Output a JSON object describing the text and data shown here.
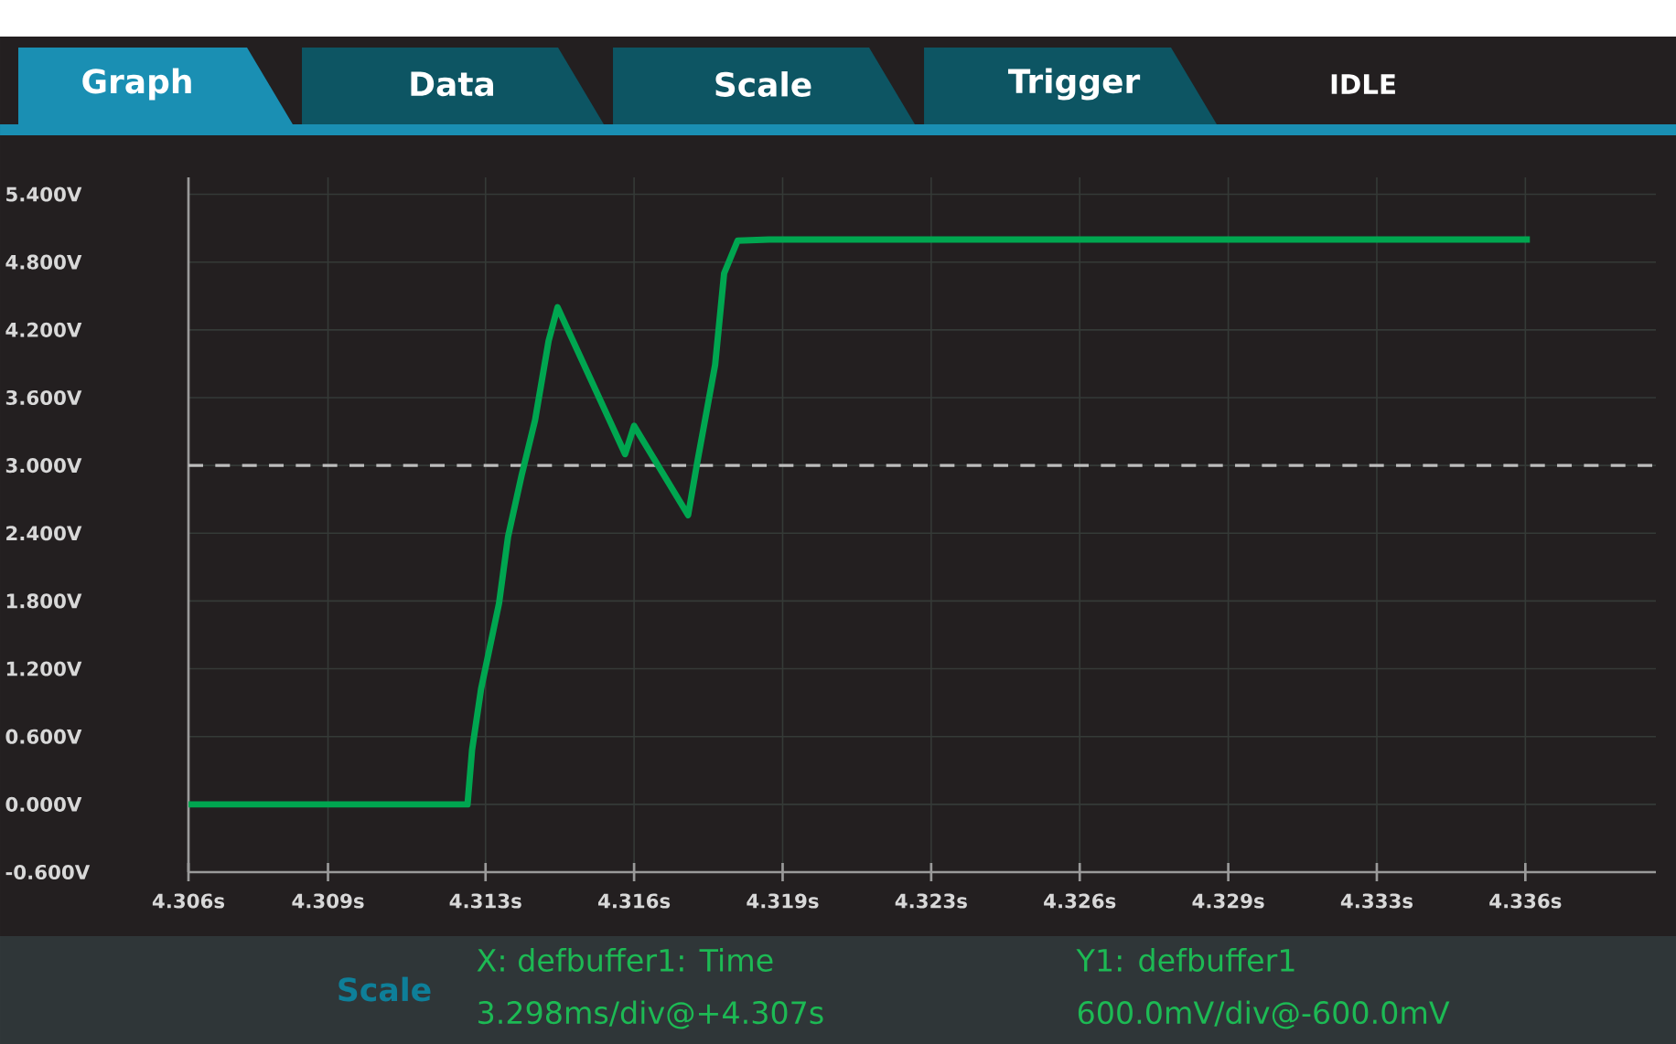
{
  "chart_data": {
    "type": "line",
    "x": [
      4.3063,
      4.3124,
      4.3125,
      4.3126,
      4.3128,
      4.3132,
      4.3134,
      4.3137,
      4.314,
      4.3143,
      4.3145,
      4.316,
      4.3162,
      4.3174,
      4.3176,
      4.318,
      4.3182,
      4.3185,
      4.3192,
      4.3361
    ],
    "series": [
      {
        "color": "#00a650",
        "values": [
          0,
          0,
          0,
          0.48,
          1.02,
          1.78,
          2.37,
          2.91,
          3.4,
          4.1,
          4.4,
          3.1,
          3.35,
          2.56,
          3.02,
          3.89,
          4.7,
          4.99,
          5.0,
          5.0
        ]
      }
    ],
    "xlim": [
      4.3063,
      4.3389
    ],
    "xticks": [
      {
        "value": 4.3063,
        "label": "4.306s"
      },
      {
        "value": 4.3094,
        "label": "4.309s"
      },
      {
        "value": 4.3129,
        "label": "4.313s"
      },
      {
        "value": 4.3162,
        "label": "4.316s"
      },
      {
        "value": 4.3195,
        "label": "4.319s"
      },
      {
        "value": 4.3228,
        "label": "4.323s"
      },
      {
        "value": 4.3261,
        "label": "4.326s"
      },
      {
        "value": 4.3294,
        "label": "4.329s"
      },
      {
        "value": 4.3327,
        "label": "4.333s"
      },
      {
        "value": 4.336,
        "label": "4.336s"
      }
    ],
    "ylim": [
      -0.6,
      5.55
    ],
    "yticks": [
      {
        "value": 5.4,
        "label": "5.400V"
      },
      {
        "value": 4.8,
        "label": "4.800V"
      },
      {
        "value": 4.2,
        "label": "4.200V"
      },
      {
        "value": 3.6,
        "label": "3.600V"
      },
      {
        "value": 3.0,
        "label": "3.000V"
      },
      {
        "value": 2.4,
        "label": "2.400V"
      },
      {
        "value": 1.8,
        "label": "1.800V"
      },
      {
        "value": 1.2,
        "label": "1.200V"
      },
      {
        "value": 0.6,
        "label": "0.600V"
      },
      {
        "value": 0,
        "label": "0.000V"
      },
      {
        "value": -0.6,
        "label": "-0.600V"
      }
    ],
    "grid": true,
    "ref_lines": [
      {
        "axis": "y",
        "value": 3.0,
        "color": "#bdbdbd",
        "line_style": "dashed"
      }
    ],
    "annotations": [
      "Graph",
      "Data",
      "Scale",
      "Trigger",
      "IDLE",
      "Scale",
      "X: defbuffer1: Time",
      "3.298ms/div@+4.307s",
      "Y1: defbuffer1",
      "600.0mV/div@-600.0mV"
    ]
  }
}
